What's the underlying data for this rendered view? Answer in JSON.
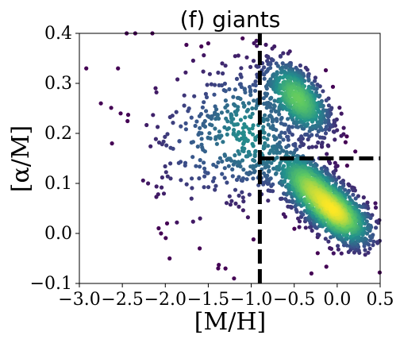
{
  "chart_data": {
    "type": "scatter",
    "title": "(f) giants",
    "xlabel": "[M/H]",
    "ylabel": "[α/M]",
    "xlim": [
      -3.0,
      0.5
    ],
    "ylim": [
      -0.1,
      0.4
    ],
    "x_ticks": [
      "−3.0",
      "−2.5",
      "−2.0",
      "−1.5",
      "−1.0",
      "−0.5",
      "0.0",
      "0.5"
    ],
    "y_ticks": [
      "−0.1",
      "0.0",
      "0.1",
      "0.2",
      "0.3",
      "0.4"
    ],
    "x_tick_values": [
      -3.0,
      -2.5,
      -2.0,
      -1.5,
      -1.0,
      -0.5,
      0.0,
      0.5
    ],
    "y_tick_values": [
      -0.1,
      0.0,
      0.1,
      0.2,
      0.3,
      0.4
    ],
    "colormap": "viridis",
    "colors": {
      "low": "#440154",
      "mid": "#21918c",
      "high": "#fde725"
    },
    "grid": false,
    "density_clusters": [
      {
        "x": 0.0,
        "y": 0.04,
        "sx": 0.22,
        "sy": 0.035,
        "rho": -0.55,
        "weight": 1.0
      },
      {
        "x": -0.35,
        "y": 0.1,
        "sx": 0.2,
        "sy": 0.035,
        "rho": -0.5,
        "weight": 0.7
      },
      {
        "x": -0.45,
        "y": 0.27,
        "sx": 0.2,
        "sy": 0.04,
        "rho": -0.55,
        "weight": 0.75
      },
      {
        "x": -1.0,
        "y": 0.2,
        "sx": 0.28,
        "sy": 0.07,
        "rho": -0.2,
        "weight": 0.35
      },
      {
        "x": -1.6,
        "y": 0.18,
        "sx": 0.35,
        "sy": 0.08,
        "rho": 0.0,
        "weight": 0.18
      }
    ],
    "outlier_points": [
      [
        -2.92,
        0.33
      ],
      [
        -2.75,
        0.26
      ],
      [
        -2.62,
        0.18
      ],
      [
        -2.55,
        0.33
      ],
      [
        -2.52,
        0.24
      ],
      [
        -2.45,
        0.4
      ],
      [
        -2.35,
        0.4
      ],
      [
        -2.15,
        0.4
      ],
      [
        -2.05,
        0.0
      ],
      [
        -1.98,
        0.02
      ],
      [
        -1.95,
        -0.05
      ],
      [
        -1.6,
        -0.03
      ],
      [
        -1.3,
        -0.07
      ],
      [
        -1.2,
        -0.09
      ],
      [
        0.05,
        -0.04
      ],
      [
        0.35,
        -0.02
      ],
      [
        -0.3,
        -0.08
      ],
      [
        -1.5,
        0.38
      ],
      [
        -1.1,
        0.39
      ],
      [
        -2.2,
        0.1
      ]
    ],
    "reference_lines": [
      {
        "orientation": "vertical",
        "x": -0.9,
        "y_from": -0.1,
        "y_to": 0.4,
        "style": "dashed"
      },
      {
        "orientation": "horizontal",
        "y": 0.15,
        "x_from": -0.9,
        "x_to": 0.5,
        "style": "dashed"
      }
    ]
  }
}
